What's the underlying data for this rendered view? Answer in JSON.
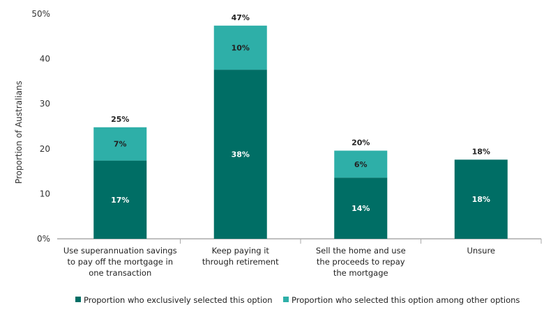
{
  "chart_data": {
    "type": "bar",
    "stacked": true,
    "ylabel": "Proportion of Australians",
    "ylim": [
      0,
      50
    ],
    "yticks": [
      "0%",
      "10",
      "20",
      "30",
      "40",
      "50%"
    ],
    "ytick_values": [
      0,
      10,
      20,
      30,
      40,
      50
    ],
    "grid": false,
    "legend_position": "bottom",
    "categories": [
      [
        "Use superannuation savings",
        "to pay off the mortgage in",
        "one transaction"
      ],
      [
        "Keep paying it",
        "through retirement"
      ],
      [
        "Sell the home and use",
        "the proceeds to repay",
        "the mortgage"
      ],
      [
        "Unsure"
      ]
    ],
    "series": [
      {
        "name": "Proportion who exclusively selected this option",
        "color": "#006E65",
        "values": [
          17.4,
          37.6,
          13.6,
          17.6
        ],
        "labels": [
          "17%",
          "38%",
          "14%",
          "18%"
        ]
      },
      {
        "name": "Proportion who selected this option among other options",
        "color": "#2EAFA8",
        "values": [
          7.4,
          9.8,
          6.0,
          0
        ],
        "labels": [
          "7%",
          "10%",
          "6%",
          ""
        ]
      }
    ],
    "totals": [
      "25%",
      "47%",
      "20%",
      "18%"
    ]
  }
}
